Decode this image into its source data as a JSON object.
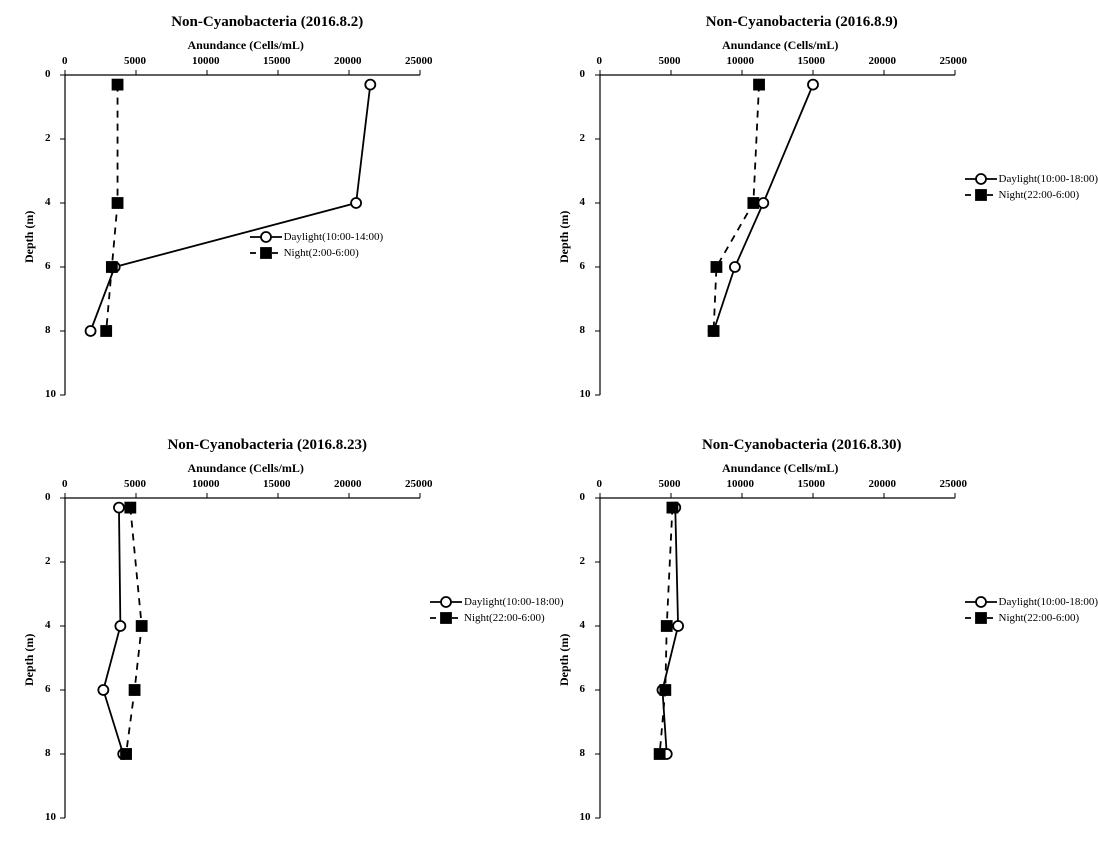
{
  "global": {
    "bg_color": "#ffffff",
    "axis_color": "#000000",
    "text_color": "#000000",
    "xlabel": "Anundance (Cells/mL)",
    "ylabel": "Depth (m)",
    "x_ticks": [
      0,
      5000,
      10000,
      15000,
      20000,
      25000
    ],
    "y_ticks": [
      0,
      2,
      4,
      6,
      8,
      10
    ],
    "xlim": [
      0,
      25000
    ],
    "ylim": [
      0,
      10
    ],
    "title_fontsize": 15,
    "label_fontsize": 12,
    "tick_fontsize": 11,
    "line_width": 1.8,
    "marker_size": 5,
    "series_styles": {
      "daylight": {
        "marker": "circle-open",
        "line": "solid",
        "color": "#000000",
        "fill": "#ffffff"
      },
      "night": {
        "marker": "square-filled",
        "line": "dashed",
        "color": "#000000",
        "fill": "#000000"
      }
    }
  },
  "panels": [
    {
      "id": "p-2016-8-2",
      "title": "Non-Cyanobacteria (2016.8.2)",
      "legend": {
        "daylight": "Daylight(10:00-14:00)",
        "night": "Night(2:00-6:00)"
      },
      "legend_pos": "inner",
      "series": {
        "daylight": {
          "depth": [
            0.3,
            4,
            6,
            8
          ],
          "abundance": [
            21500,
            20500,
            3500,
            1800
          ]
        },
        "night": {
          "depth": [
            0.3,
            4,
            6,
            8
          ],
          "abundance": [
            3700,
            3700,
            3300,
            2900
          ]
        }
      }
    },
    {
      "id": "p-2016-8-9",
      "title": "Non-Cyanobacteria (2016.8.9)",
      "legend": {
        "daylight": "Daylight(10:00-18:00)",
        "night": "Night(22:00-6:00)"
      },
      "legend_pos": "outer",
      "series": {
        "daylight": {
          "depth": [
            0.3,
            4,
            6,
            8
          ],
          "abundance": [
            15000,
            11500,
            9500,
            8000
          ]
        },
        "night": {
          "depth": [
            0.3,
            4,
            6,
            8
          ],
          "abundance": [
            11200,
            10800,
            8200,
            8000
          ]
        }
      }
    },
    {
      "id": "p-2016-8-23",
      "title": "Non-Cyanobacteria (2016.8.23)",
      "legend": {
        "daylight": "Daylight(10:00-18:00)",
        "night": "Night(22:00-6:00)"
      },
      "legend_pos": "outer",
      "series": {
        "daylight": {
          "depth": [
            0.3,
            4,
            6,
            8
          ],
          "abundance": [
            3800,
            3900,
            2700,
            4100
          ]
        },
        "night": {
          "depth": [
            0.3,
            4,
            6,
            8
          ],
          "abundance": [
            4600,
            5400,
            4900,
            4300
          ]
        }
      }
    },
    {
      "id": "p-2016-8-30",
      "title": "Non-Cyanobacteria (2016.8.30)",
      "legend": {
        "daylight": "Daylight(10:00-18:00)",
        "night": "Night(22:00-6:00)"
      },
      "legend_pos": "outer",
      "series": {
        "daylight": {
          "depth": [
            0.3,
            4,
            6,
            8
          ],
          "abundance": [
            5300,
            5500,
            4400,
            4700
          ]
        },
        "night": {
          "depth": [
            0.3,
            4,
            6,
            8
          ],
          "abundance": [
            5100,
            4700,
            4600,
            4200
          ]
        }
      }
    }
  ]
}
